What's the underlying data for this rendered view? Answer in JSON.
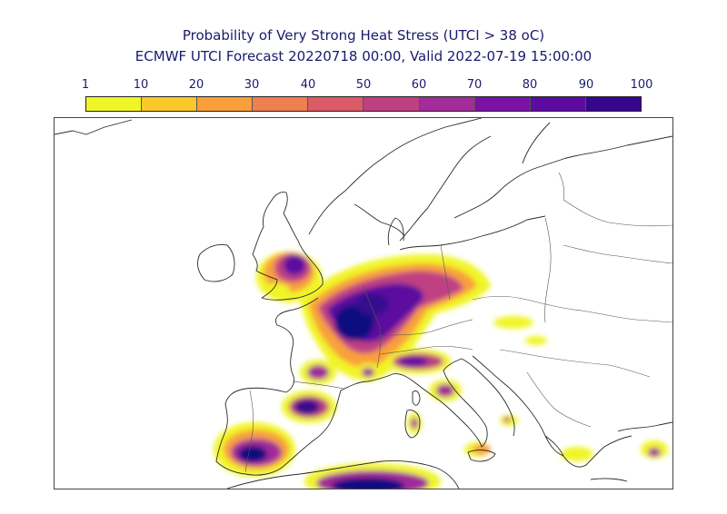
{
  "title_line1": "Probability of Very Strong Heat Stress (UTCI > 38 oC)",
  "title_line2": "ECMWF UTCI Forecast 20220718 00:00, Valid 2022-07-19 15:00:00",
  "colorbar": {
    "ticks": [
      "1",
      "10",
      "20",
      "30",
      "40",
      "50",
      "60",
      "70",
      "80",
      "90",
      "100"
    ],
    "colors": [
      "#f0f528",
      "#fcc82a",
      "#f9a03a",
      "#ee7f50",
      "#db5b66",
      "#bf3f83",
      "#a12c9a",
      "#7c11a6",
      "#5c0aa0",
      "#36078d",
      "#0f0780"
    ]
  }
}
